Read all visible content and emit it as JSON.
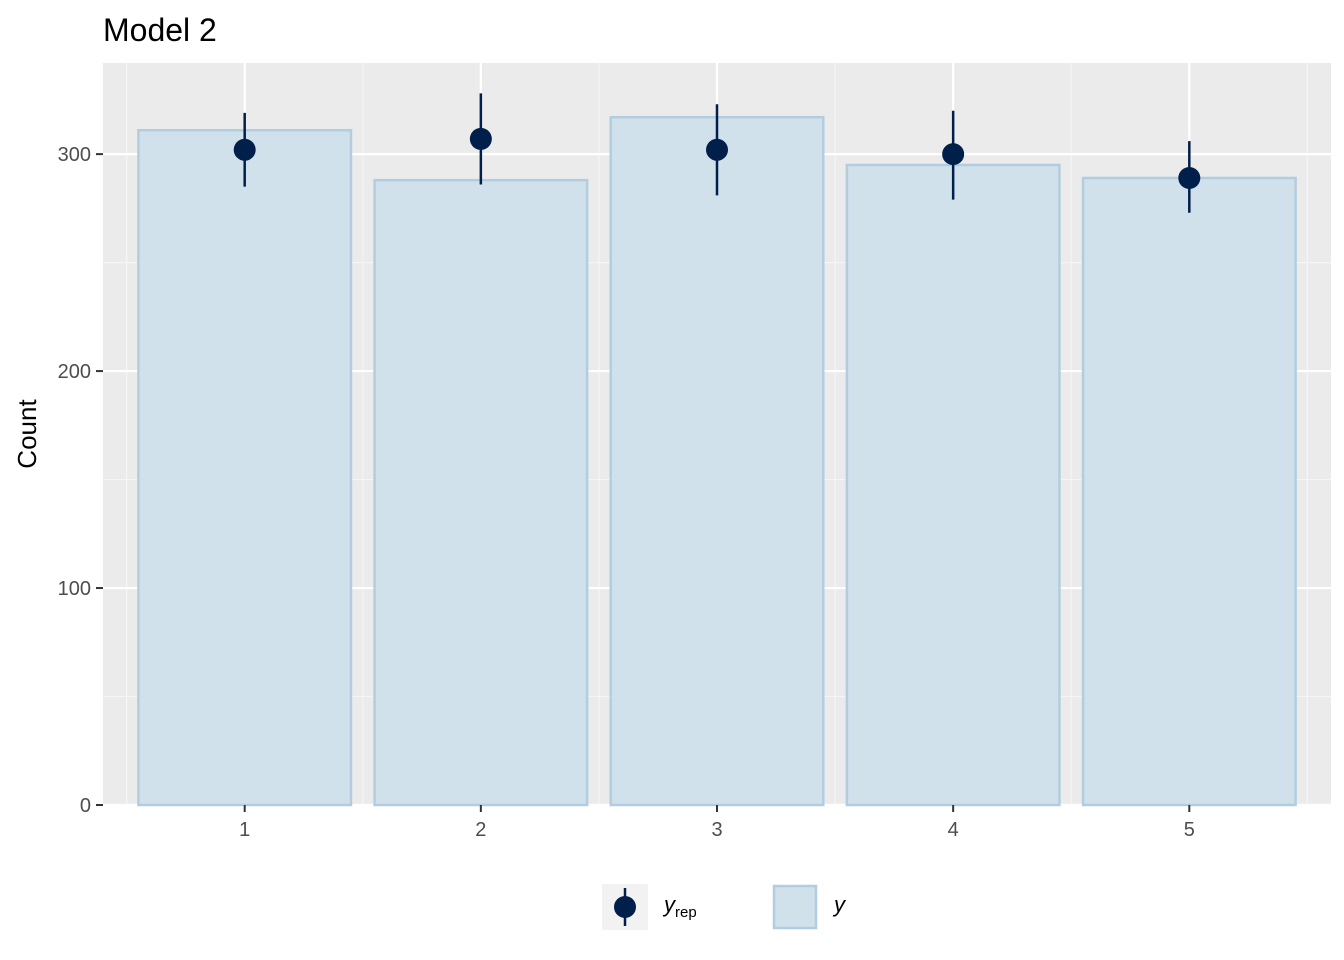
{
  "chart_data": {
    "type": "bar",
    "title": "Model 2",
    "xlabel": "",
    "ylabel": "Count",
    "categories": [
      "1",
      "2",
      "3",
      "4",
      "5"
    ],
    "y_ticks": [
      0,
      100,
      200,
      300
    ],
    "ylim": [
      0,
      342
    ],
    "grid": true,
    "legend_position": "bottom",
    "series": [
      {
        "name": "y",
        "kind": "bar",
        "values": [
          311,
          288,
          317,
          295,
          289
        ]
      },
      {
        "name": "y_rep",
        "kind": "pointrange",
        "values": [
          302,
          307,
          302,
          300,
          289
        ],
        "lower": [
          285,
          286,
          281,
          279,
          273
        ],
        "upper": [
          319,
          328,
          323,
          320,
          306
        ]
      }
    ],
    "legend": [
      {
        "symbol": "pointrange",
        "label": "y",
        "subscript": "rep"
      },
      {
        "symbol": "bar",
        "label": "y",
        "subscript": ""
      }
    ]
  },
  "colors": {
    "panel_background": "#ebebeb",
    "grid_major": "#ffffff",
    "grid_minor": "#f5f5f5",
    "bar_fill": "#d1e1ec",
    "bar_stroke": "#b3cde0",
    "point": "#011f4b",
    "legend_key_background": "#f2f2f2"
  }
}
